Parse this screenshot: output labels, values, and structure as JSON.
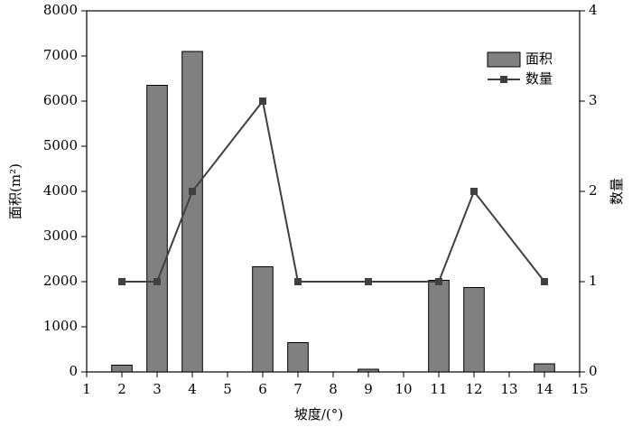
{
  "chart_data": {
    "type": "combo",
    "xlabel": "坡度/(°)",
    "ylabel": "面积(m²)",
    "y2label": "数量",
    "x": [
      2,
      3,
      4,
      6,
      7,
      9,
      11,
      12,
      14
    ],
    "series": [
      {
        "name": "面积",
        "type": "bar",
        "color": "#808080",
        "values": [
          150,
          6350,
          7100,
          2330,
          650,
          60,
          2030,
          1870,
          180
        ]
      },
      {
        "name": "数量",
        "type": "line",
        "axis": "y2",
        "color": "#404040",
        "values": [
          1,
          1,
          2,
          3,
          1,
          1,
          1,
          2,
          1
        ]
      }
    ],
    "xlim": [
      1,
      15
    ],
    "xticks": [
      1,
      2,
      3,
      4,
      5,
      6,
      7,
      8,
      9,
      10,
      11,
      12,
      13,
      14,
      15
    ],
    "ylim": [
      0,
      8000
    ],
    "yticks": [
      0,
      1000,
      2000,
      3000,
      4000,
      5000,
      6000,
      7000,
      8000
    ],
    "y2lim": [
      0,
      4
    ],
    "y2ticks": [
      0,
      1,
      2,
      3,
      4
    ],
    "legend": "upper right",
    "grid": false
  }
}
